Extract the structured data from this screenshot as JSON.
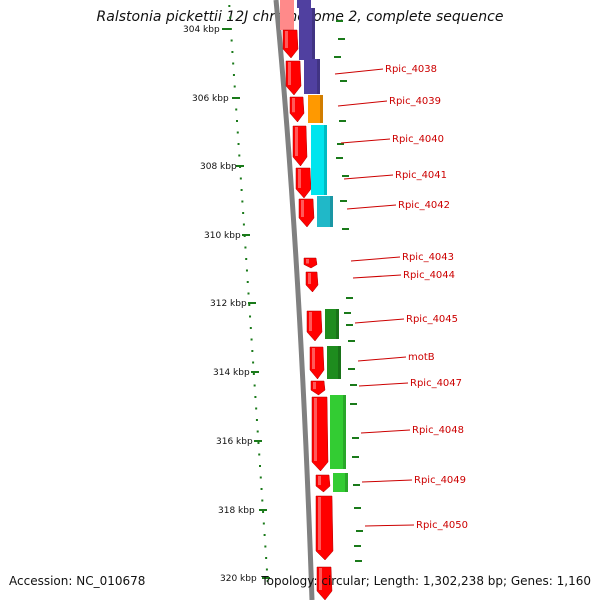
{
  "title": "Ralstonia pickettii 12J chromosome 2, complete sequence",
  "accession": "Accession: NC_010678",
  "topology": "Topology: circular; Length: 1,302,238 bp; Genes: 1,160",
  "colors": {
    "backbone": "#808080",
    "cds": "#ff0000",
    "purple": "#5040a0",
    "orange": "#ff9900",
    "cyan": "#00e5ee",
    "dark_green": "#1e8c1e",
    "light_green": "#33cc33",
    "gc_marks": "#1a7a1a",
    "label": "#cc0000"
  },
  "ticks": [
    "304 kbp",
    "306 kbp",
    "308 kbp",
    "310 kbp",
    "312 kbp",
    "314 kbp",
    "316 kbp",
    "318 kbp",
    "320 kbp"
  ],
  "gene_labels": [
    "Rpic_4038",
    "Rpic_4039",
    "Rpic_4040",
    "Rpic_4041",
    "Rpic_4042",
    "Rpic_4043",
    "Rpic_4044",
    "Rpic_4045",
    "motB",
    "Rpic_4047",
    "Rpic_4048",
    "Rpic_4049",
    "Rpic_4050"
  ]
}
